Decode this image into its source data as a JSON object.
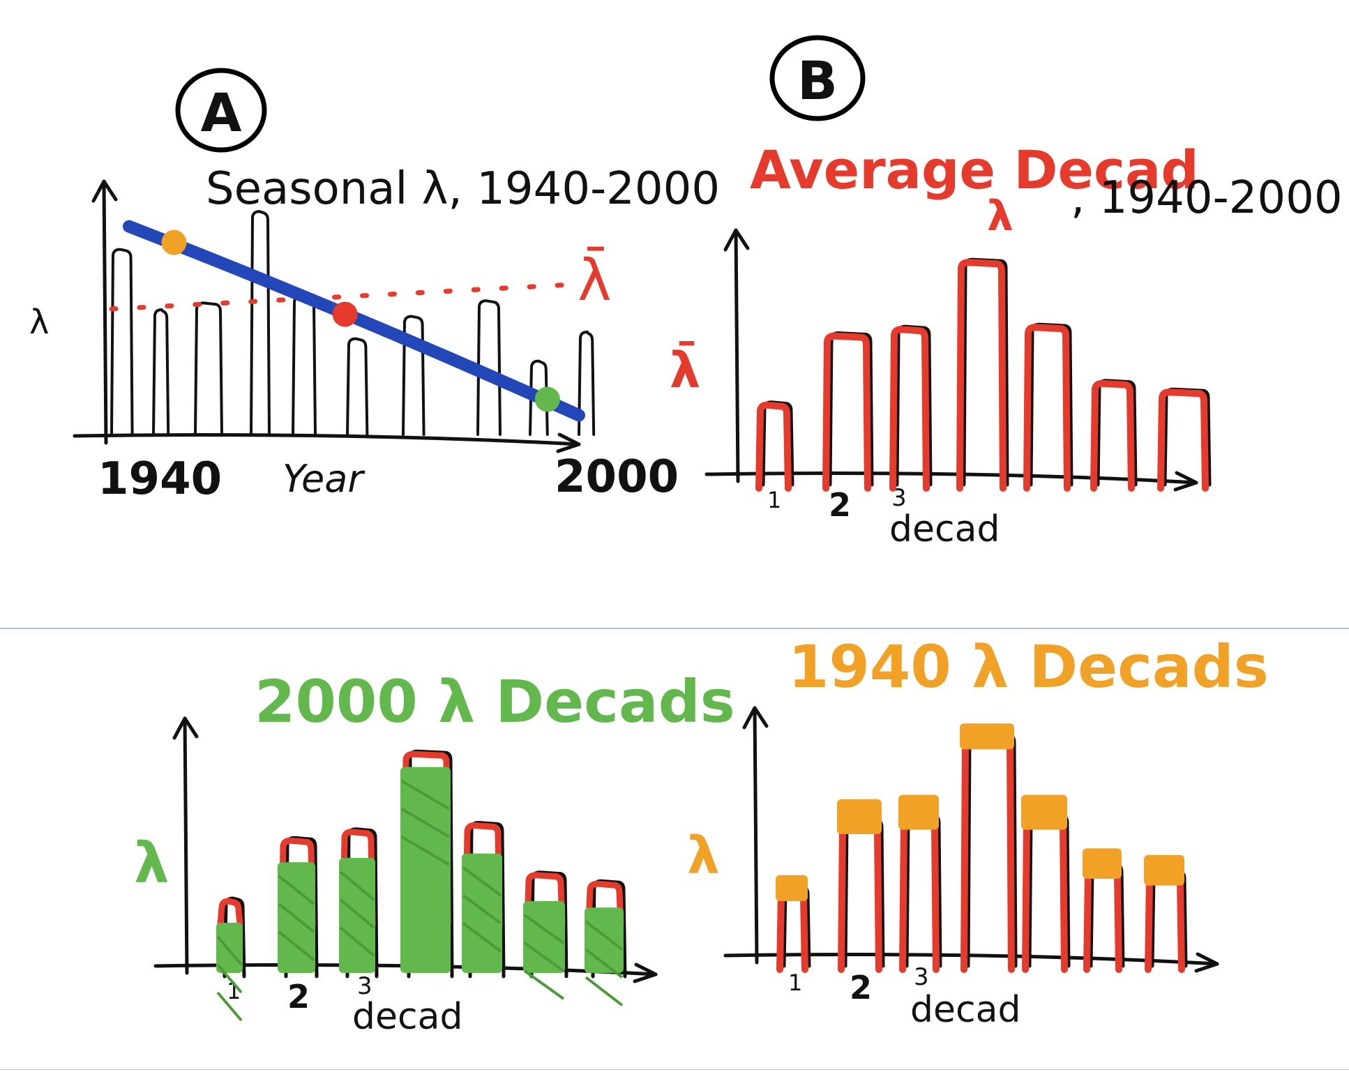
{
  "colors": {
    "ink": "#111111",
    "red": "#e53a2c",
    "blue": "#2346b8",
    "green": "#62b84c",
    "orange": "#f0a126",
    "separator": "#b8c2dd"
  },
  "panel_a": {
    "circle_label": "A",
    "title": "Seasonal λ, 1940-2000",
    "y_label": "λ",
    "x_label": "Year",
    "x_start": "1940",
    "x_end": "2000",
    "mean_label": "λ̄",
    "chart_data": {
      "type": "bar",
      "bar_heights": [
        0.82,
        0.55,
        0.58,
        0.99,
        0.61,
        0.42,
        0.52,
        0.59,
        0.32,
        0.45
      ],
      "mean_level": 0.6,
      "trend_line": {
        "start": 0.97,
        "end": 0.28
      },
      "highlight_points": [
        {
          "name": "1940",
          "color": "orange",
          "position": 0.1
        },
        {
          "name": "mean",
          "color": "red",
          "position": 0.48
        },
        {
          "name": "2000",
          "color": "green",
          "position": 0.93
        }
      ]
    }
  },
  "panel_b": {
    "circle_label": "B",
    "title": "Average Decad",
    "title_sub": "λ",
    "title_suffix": ", 1940-2000",
    "y_label": "λ̄",
    "x_label": "decad",
    "ticks": [
      "1",
      "2",
      "3"
    ],
    "chart_data": {
      "type": "bar",
      "values": [
        0.32,
        0.64,
        0.67,
        0.98,
        0.68,
        0.42,
        0.38
      ]
    }
  },
  "panel_c": {
    "title": "2000 λ Decads",
    "y_label": "λ",
    "x_label": "decad",
    "ticks": [
      "1",
      "2",
      "3"
    ],
    "chart_data": {
      "type": "bar",
      "average_values": [
        0.3,
        0.58,
        0.62,
        0.98,
        0.65,
        0.42,
        0.38
      ],
      "values": [
        0.2,
        0.48,
        0.5,
        0.92,
        0.52,
        0.3,
        0.27
      ]
    }
  },
  "panel_d": {
    "title": "1940 λ Decads",
    "y_label": "λ",
    "x_label": "decad",
    "ticks": [
      "1",
      "2",
      "3"
    ],
    "chart_data": {
      "type": "bar",
      "average_values": [
        0.3,
        0.6,
        0.62,
        0.98,
        0.62,
        0.4,
        0.37
      ],
      "values": [
        0.36,
        0.7,
        0.72,
        1.04,
        0.72,
        0.48,
        0.45
      ]
    }
  }
}
